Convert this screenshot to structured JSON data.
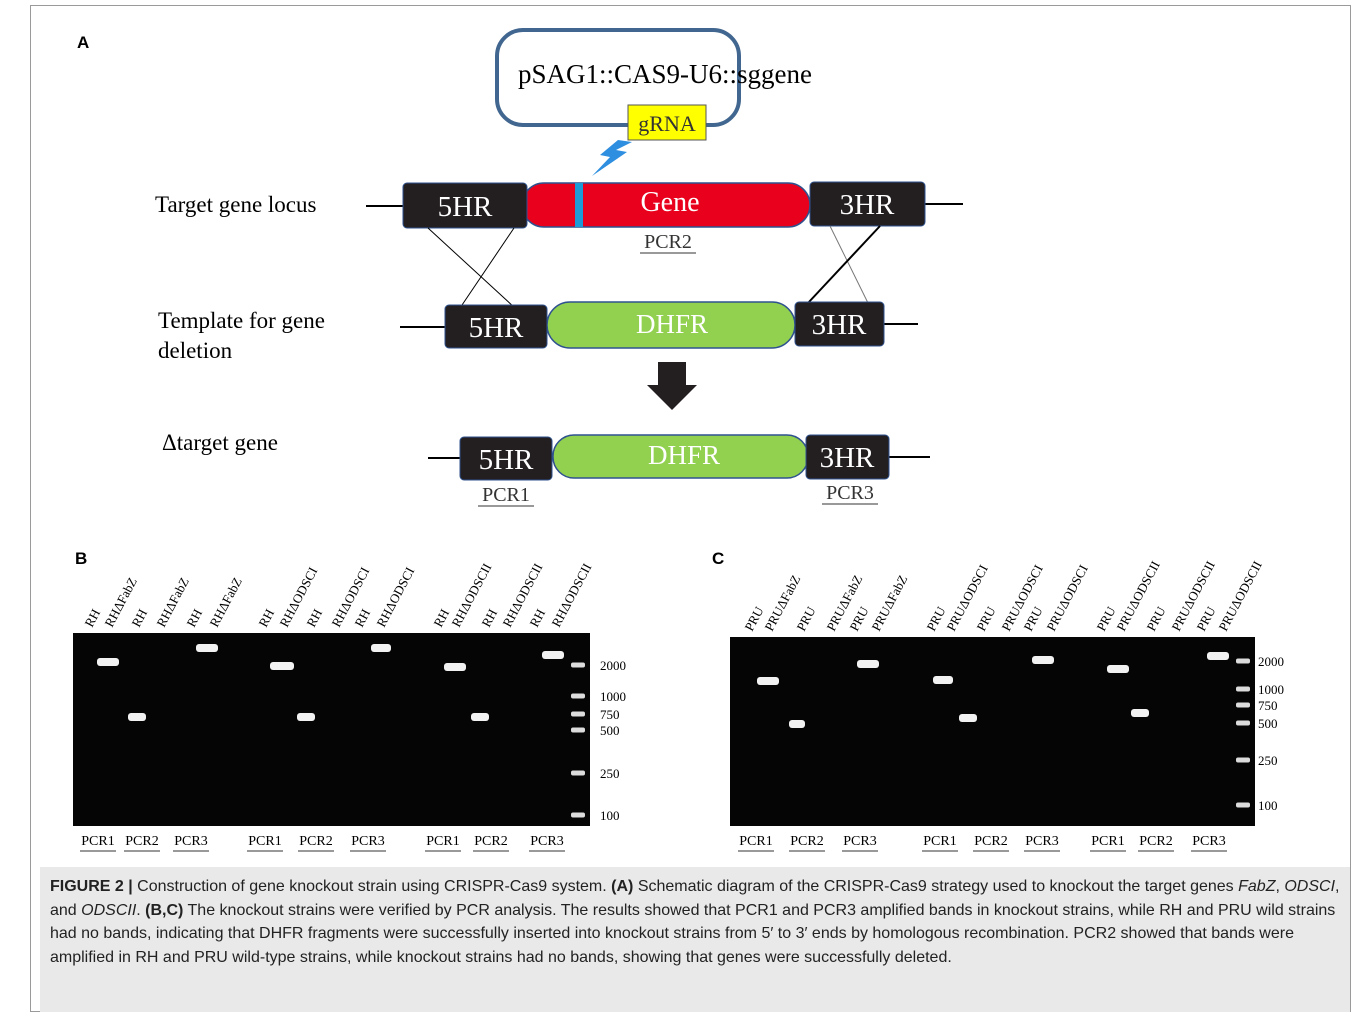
{
  "panel_a": {
    "label": "A",
    "plasmid": "pSAG1::CAS9-U6::sggene",
    "grna": "gRNA",
    "locus": {
      "label": "Target gene locus",
      "left": "5HR",
      "middle": "Gene",
      "right": "3HR",
      "pcr": "PCR2"
    },
    "template": {
      "label": [
        "Template for gene",
        "deletion"
      ],
      "left": "5HR",
      "middle": "DHFR",
      "right": "3HR"
    },
    "deleted": {
      "label": "Δtarget gene",
      "left": "5HR",
      "middle": "DHFR",
      "right": "3HR",
      "pcr_left": "PCR1",
      "pcr_right": "PCR3"
    }
  },
  "panel_b": {
    "label": "B",
    "lanes": [
      "RH",
      "RHΔFabZ",
      "RH",
      "RHΔFabZ",
      "RH",
      "RHΔFabZ",
      "RH",
      "RHΔODSCI",
      "RH",
      "RHΔODSCI",
      "RH",
      "RHΔODSCI",
      "RH",
      "RHΔODSCII",
      "RH",
      "RHΔODSCII",
      "RH",
      "RHΔODSCII"
    ],
    "ladder": [
      2000,
      1000,
      750,
      500,
      250,
      100
    ],
    "pcr": [
      "PCR1",
      "PCR2",
      "PCR3",
      "PCR1",
      "PCR2",
      "PCR3",
      "PCR1",
      "PCR2",
      "PCR3"
    ]
  },
  "panel_c": {
    "label": "C",
    "lanes": [
      "PRU",
      "PRUΔFabZ",
      "PRU",
      "PRUΔFabZ",
      "PRU",
      "PRUΔFabZ",
      "PRU",
      "PRUΔODSCI",
      "PRU",
      "PRUΔODSCI",
      "PRU",
      "PRUΔODSCI",
      "PRU",
      "PRUΔODSCII",
      "PRU",
      "PRUΔODSCII",
      "PRU",
      "PRUΔODSCII"
    ],
    "ladder": [
      2000,
      1000,
      750,
      500,
      250,
      100
    ],
    "pcr": [
      "PCR1",
      "PCR2",
      "PCR3",
      "PCR1",
      "PCR2",
      "PCR3",
      "PCR1",
      "PCR2",
      "PCR3"
    ]
  },
  "caption": [
    {
      "text": "FIGURE 2 |",
      "style": "bold"
    },
    {
      "text": " Construction of gene knockout strain using CRISPR-Cas9 system. "
    },
    {
      "text": "(A)",
      "style": "bold"
    },
    {
      "text": " Schematic diagram of the CRISPR-Cas9 strategy used to knockout the target genes "
    },
    {
      "text": "FabZ",
      "style": "italic"
    },
    {
      "text": ", "
    },
    {
      "text": "ODSCI",
      "style": "italic"
    },
    {
      "text": ", and "
    },
    {
      "text": "ODSCII",
      "style": "italic"
    },
    {
      "text": ". "
    },
    {
      "text": "(B,C)",
      "style": "bold"
    },
    {
      "text": " The knockout strains were verified by PCR analysis. The results showed that PCR1 and PCR3 amplified bands in knockout strains, while RH and PRU wild strains had no bands, indicating that DHFR fragments were successfully inserted into knockout strains from 5′ to 3′ ends by homologous recombination. PCR2 showed that bands were amplified in RH and PRU wild-type strains, while knockout strains had no bands, showing that genes were successfully deleted."
    }
  ]
}
